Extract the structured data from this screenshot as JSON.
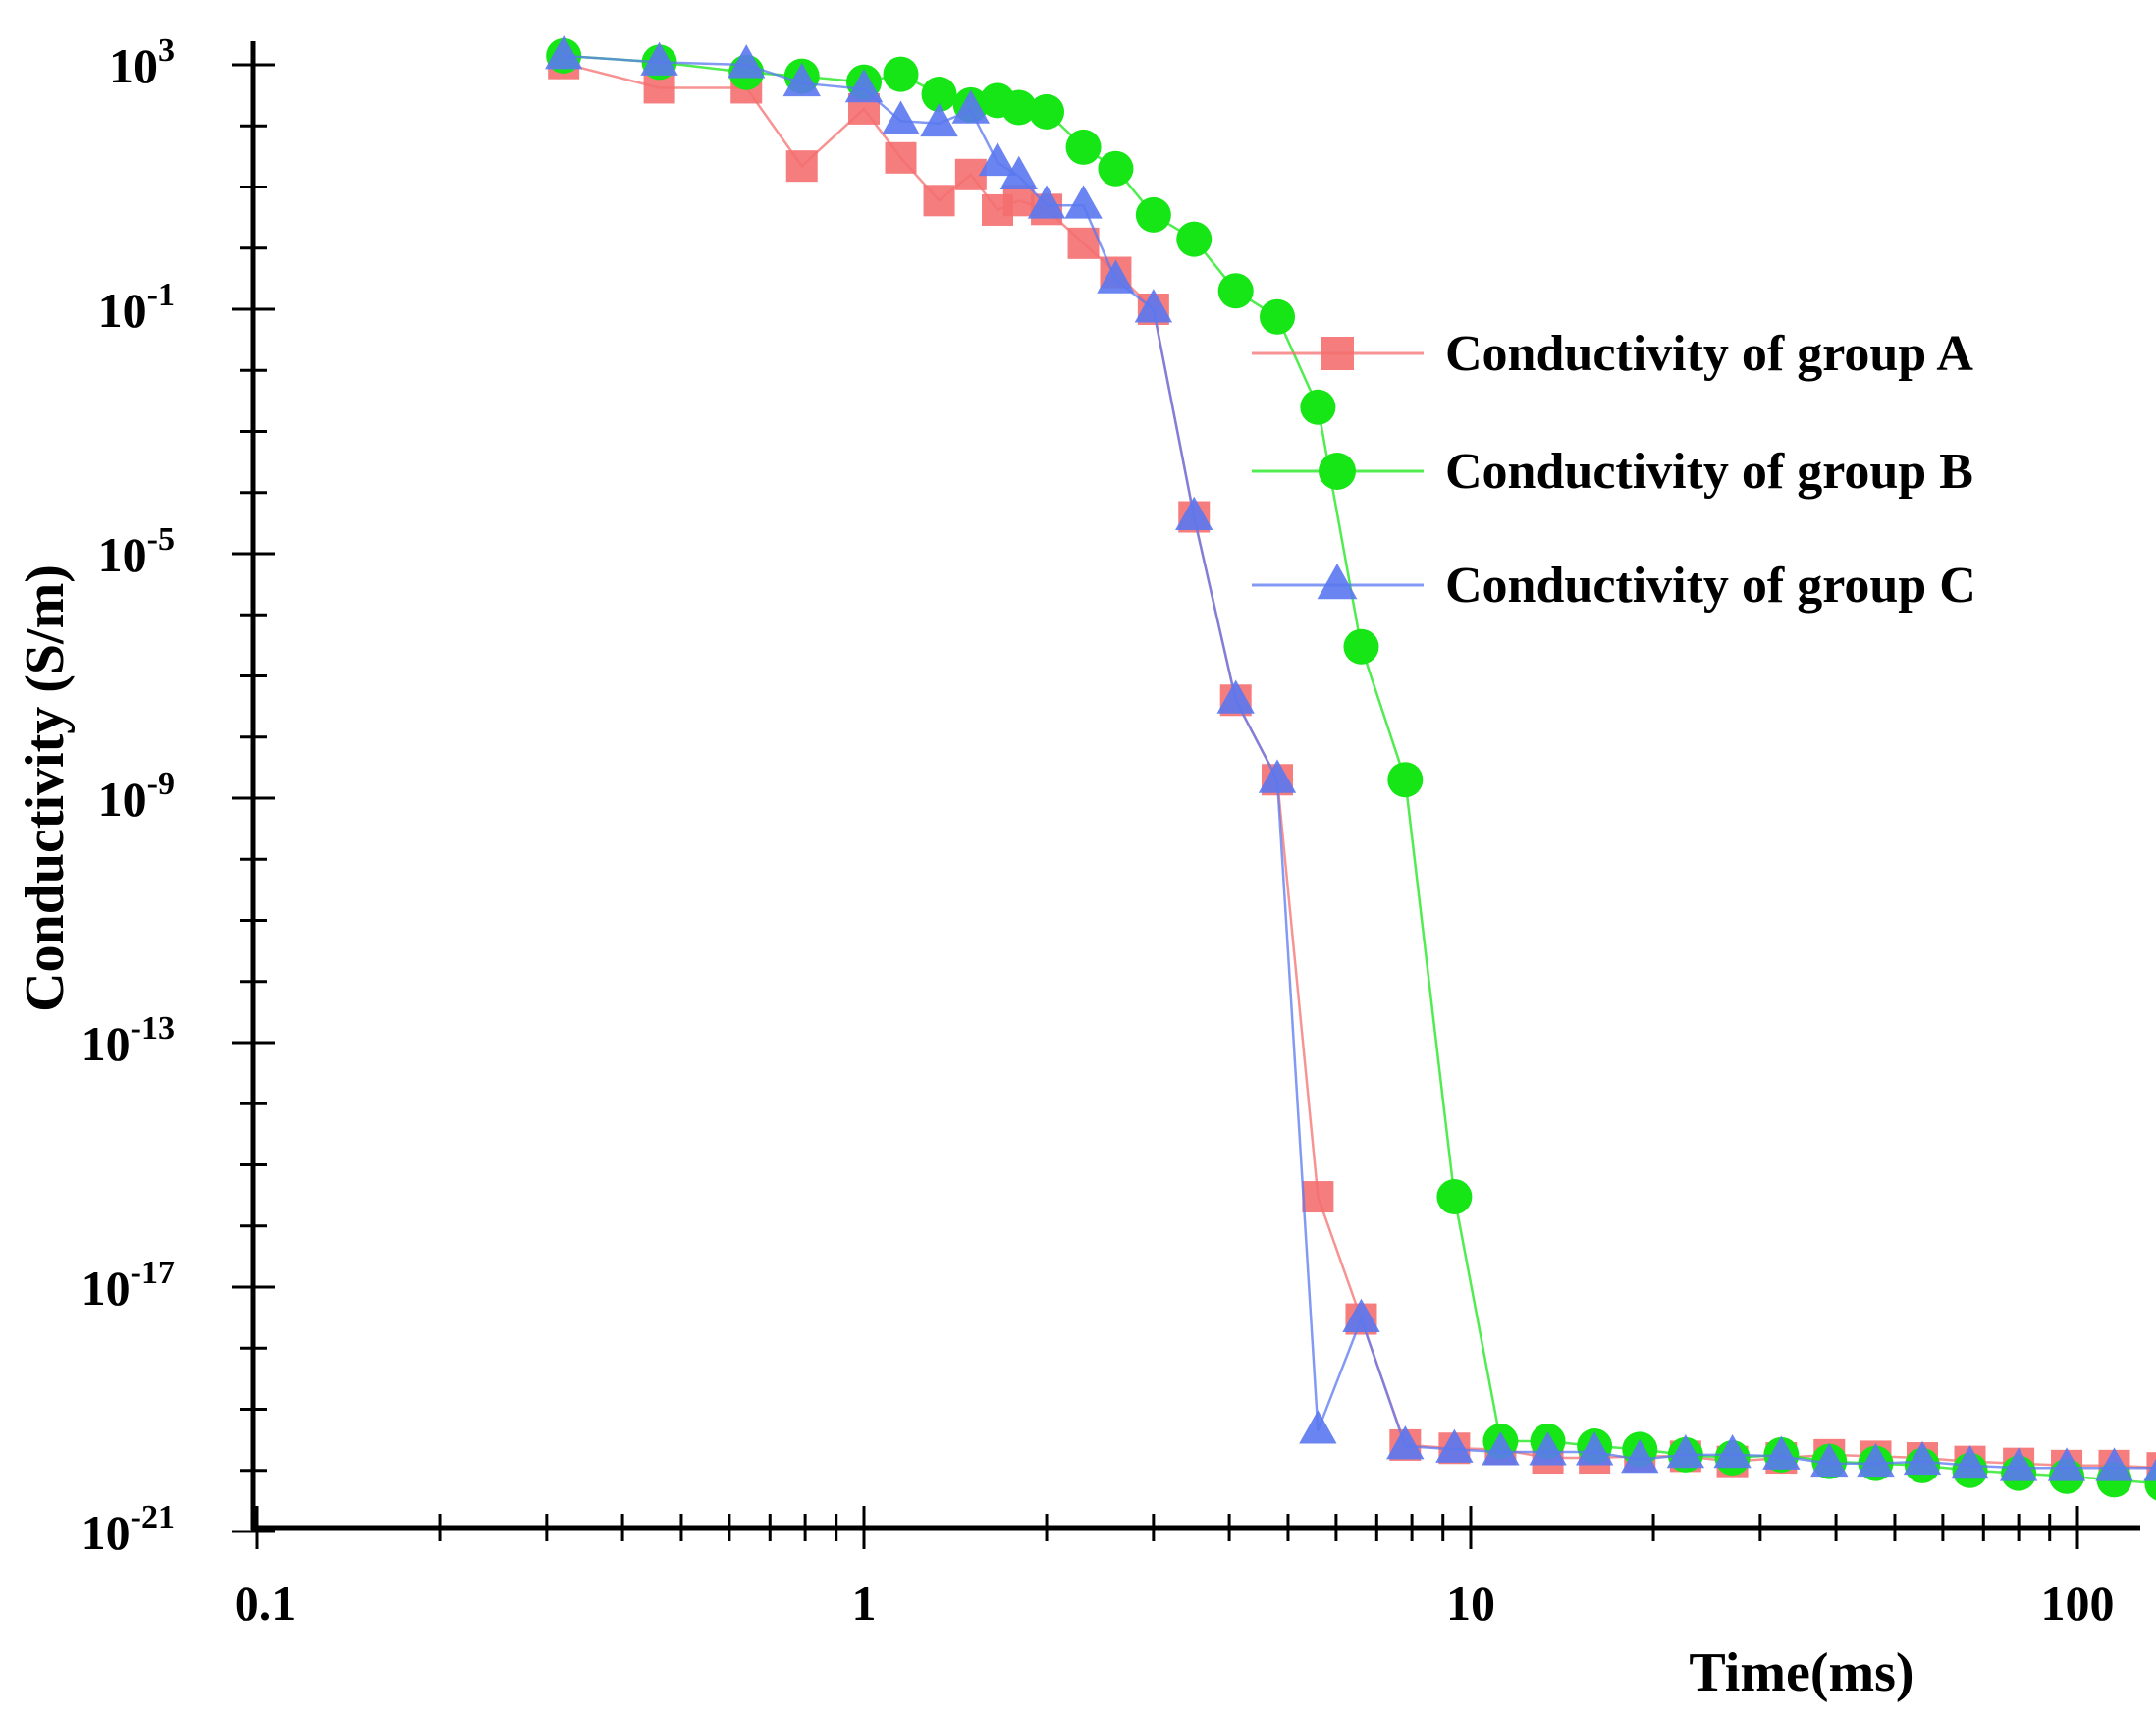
{
  "chart_data": {
    "type": "line",
    "xscale": "log",
    "yscale": "log",
    "xlabel": "Time(ms)",
    "ylabel": "Conductivity (S/m)",
    "xlim": [
      0.1,
      250
    ],
    "ylim": [
      1e-21,
      5000.0
    ],
    "xticks": [
      {
        "value": 0.1,
        "label": "0.1"
      },
      {
        "value": 1,
        "label": "1"
      },
      {
        "value": 10,
        "label": "10"
      },
      {
        "value": 100,
        "label": "100"
      }
    ],
    "yticks": [
      {
        "value": 1000.0,
        "base": "10",
        "exp": "3"
      },
      {
        "value": 0.1,
        "base": "10",
        "exp": "-1"
      },
      {
        "value": 1e-05,
        "base": "10",
        "exp": "-5"
      },
      {
        "value": 1e-09,
        "base": "10",
        "exp": "-9"
      },
      {
        "value": 1e-13,
        "base": "10",
        "exp": "-13"
      },
      {
        "value": 1e-17,
        "base": "10",
        "exp": "-17"
      },
      {
        "value": 1e-21,
        "base": "10",
        "exp": "-21"
      }
    ],
    "grid": false,
    "legend_position": "right",
    "series": [
      {
        "name": "Conductivity of group A",
        "color": "#f46f6f",
        "marker": "square",
        "points": [
          [
            0.32,
            1050
          ],
          [
            0.46,
            420
          ],
          [
            0.64,
            420
          ],
          [
            0.79,
            22
          ],
          [
            1.0,
            190
          ],
          [
            1.15,
            30
          ],
          [
            1.33,
            6
          ],
          [
            1.5,
            16
          ],
          [
            1.66,
            4.2
          ],
          [
            1.8,
            6
          ],
          [
            2.0,
            4.3
          ],
          [
            2.3,
            1.2
          ],
          [
            2.6,
            0.4
          ],
          [
            3.0,
            0.1
          ],
          [
            3.5,
            4e-05
          ],
          [
            4.1,
            4e-08
          ],
          [
            4.8,
            2e-09
          ],
          [
            5.6,
            3e-16
          ],
          [
            6.6,
            3e-18
          ],
          [
            7.8,
            2.6e-20
          ],
          [
            9.4,
            2.3e-20
          ],
          [
            11.2,
            2.2e-20
          ],
          [
            13.4,
            1.6e-20
          ],
          [
            16.0,
            1.6e-20
          ],
          [
            19.0,
            1.7e-20
          ],
          [
            22.6,
            1.7e-20
          ],
          [
            27.0,
            1.4e-20
          ],
          [
            32.5,
            1.6e-20
          ],
          [
            39.0,
            1.8e-20
          ],
          [
            46.5,
            1.7e-20
          ],
          [
            55.5,
            1.6e-20
          ],
          [
            66.5,
            1.4e-20
          ],
          [
            80.0,
            1.3e-20
          ],
          [
            96.0,
            1.2e-20
          ],
          [
            115.0,
            1.2e-20
          ],
          [
            138.0,
            1.1e-20
          ],
          [
            165.0,
            1.1e-20
          ],
          [
            198.0,
            1e-20
          ]
        ]
      },
      {
        "name": "Conductivity of group B",
        "color": "#16e516",
        "marker": "circle",
        "points": [
          [
            0.32,
            1400
          ],
          [
            0.46,
            1100
          ],
          [
            0.64,
            750
          ],
          [
            0.79,
            650
          ],
          [
            1.0,
            520
          ],
          [
            1.15,
            700
          ],
          [
            1.33,
            330
          ],
          [
            1.5,
            220
          ],
          [
            1.66,
            260
          ],
          [
            1.8,
            200
          ],
          [
            2.0,
            170
          ],
          [
            2.3,
            45
          ],
          [
            2.6,
            20
          ],
          [
            3.0,
            3.5
          ],
          [
            3.5,
            1.4
          ],
          [
            4.1,
            0.2
          ],
          [
            4.8,
            0.075
          ],
          [
            5.6,
            0.0025
          ],
          [
            6.6,
            3e-07
          ],
          [
            7.8,
            2e-09
          ],
          [
            9.4,
            3e-16
          ],
          [
            11.2,
            3e-20
          ],
          [
            13.4,
            3e-20
          ],
          [
            16.0,
            2.5e-20
          ],
          [
            19.0,
            2.2e-20
          ],
          [
            22.6,
            1.8e-20
          ],
          [
            27.0,
            1.6e-20
          ],
          [
            32.5,
            1.8e-20
          ],
          [
            39.0,
            1.4e-20
          ],
          [
            46.5,
            1.3e-20
          ],
          [
            55.5,
            1.2e-20
          ],
          [
            66.5,
            1e-20
          ],
          [
            80.0,
            9e-21
          ],
          [
            96.0,
            8e-21
          ],
          [
            115.0,
            7e-21
          ],
          [
            138.0,
            6e-21
          ],
          [
            165.0,
            5.5e-21
          ],
          [
            198.0,
            4e-21
          ]
        ]
      },
      {
        "name": "Conductivity of group C",
        "color": "#5a78f0",
        "marker": "triangle",
        "points": [
          [
            0.32,
            1400
          ],
          [
            0.46,
            1100
          ],
          [
            0.64,
            1000
          ],
          [
            0.79,
            500
          ],
          [
            1.0,
            400
          ],
          [
            1.15,
            120
          ],
          [
            1.33,
            110
          ],
          [
            1.5,
            180
          ],
          [
            1.66,
            25
          ],
          [
            1.8,
            15
          ],
          [
            2.0,
            5
          ],
          [
            2.3,
            5
          ],
          [
            2.6,
            0.3
          ],
          [
            3.0,
            0.1
          ],
          [
            3.5,
            4e-05
          ],
          [
            4.1,
            4e-08
          ],
          [
            4.8,
            2e-09
          ],
          [
            5.6,
            4.5e-20
          ],
          [
            6.6,
            3e-18
          ],
          [
            7.8,
            2.5e-20
          ],
          [
            9.4,
            2.2e-20
          ],
          [
            11.2,
            2e-20
          ],
          [
            13.4,
            2e-20
          ],
          [
            16.0,
            2e-20
          ],
          [
            19.0,
            1.5e-20
          ],
          [
            22.6,
            1.8e-20
          ],
          [
            27.0,
            1.8e-20
          ],
          [
            32.5,
            1.7e-20
          ],
          [
            39.0,
            1.3e-20
          ],
          [
            46.5,
            1.3e-20
          ],
          [
            55.5,
            1.4e-20
          ],
          [
            66.5,
            1.2e-20
          ],
          [
            80.0,
            1.1e-20
          ],
          [
            96.0,
            1.1e-20
          ],
          [
            115.0,
            1.1e-20
          ],
          [
            138.0,
            1.1e-20
          ],
          [
            165.0,
            1.1e-20
          ]
        ]
      }
    ]
  }
}
